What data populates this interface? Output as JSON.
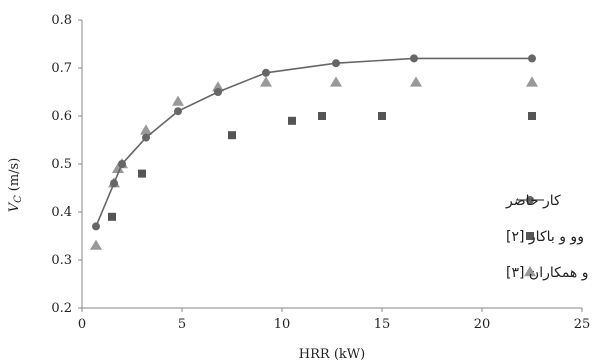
{
  "chart_data": {
    "type": "scatter",
    "title": "",
    "xlabel": "HRR (kW)",
    "ylabel": "V_C (m/s)",
    "ylabel_var": "V",
    "ylabel_sub": "C",
    "ylabel_unit": "(m/s)",
    "xlim": [
      0,
      25
    ],
    "ylim": [
      0.2,
      0.8
    ],
    "xticks": [
      "0",
      "5",
      "10",
      "15",
      "20",
      "25"
    ],
    "yticks": [
      "0.2",
      "0.3",
      "0.4",
      "0.5",
      "0.6",
      "0.7",
      "0.8"
    ],
    "grid": false,
    "legend_position": "right",
    "series": [
      {
        "name": "کار حاضر",
        "style": "line-circle",
        "color": "#666666",
        "points": [
          [
            0.7,
            0.37
          ],
          [
            1.6,
            0.46
          ],
          [
            2.0,
            0.5
          ],
          [
            3.2,
            0.555
          ],
          [
            4.8,
            0.61
          ],
          [
            6.8,
            0.65
          ],
          [
            9.2,
            0.69
          ],
          [
            12.7,
            0.71
          ],
          [
            16.6,
            0.72
          ],
          [
            22.5,
            0.72
          ]
        ]
      },
      {
        "name": "وو و باکار [۲]",
        "style": "square",
        "color": "#555555",
        "points": [
          [
            1.5,
            0.39
          ],
          [
            3.0,
            0.48
          ],
          [
            7.5,
            0.56
          ],
          [
            10.5,
            0.59
          ],
          [
            12.0,
            0.6
          ],
          [
            15.0,
            0.6
          ],
          [
            22.5,
            0.6
          ]
        ]
      },
      {
        "name": "لی و همکاران [۳]",
        "style": "triangle",
        "color": "#999999",
        "points": [
          [
            0.7,
            0.33
          ],
          [
            1.6,
            0.46
          ],
          [
            1.8,
            0.49
          ],
          [
            2.0,
            0.5
          ],
          [
            3.2,
            0.57
          ],
          [
            4.8,
            0.63
          ],
          [
            6.8,
            0.66
          ],
          [
            9.2,
            0.67
          ],
          [
            12.7,
            0.67
          ],
          [
            16.7,
            0.67
          ],
          [
            22.5,
            0.67
          ]
        ]
      }
    ]
  }
}
